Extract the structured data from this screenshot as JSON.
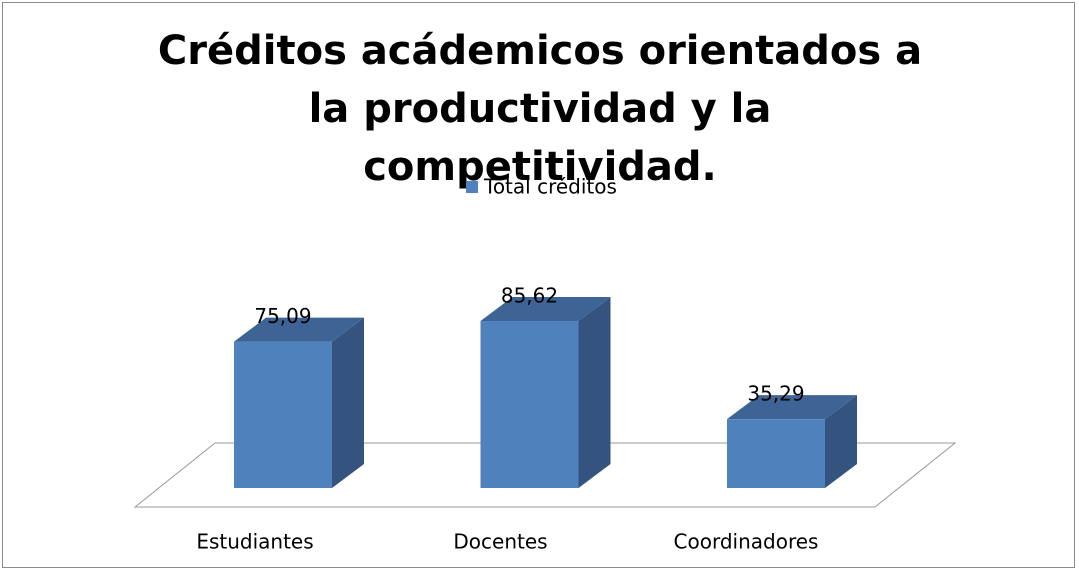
{
  "chart_data": {
    "type": "bar3d",
    "title": "Créditos acádemicos orientados a la productividad y la competitividad.",
    "categories": [
      "Estudiantes",
      "Docentes",
      "Coordinadores"
    ],
    "series": [
      {
        "name": "Total créditos",
        "color": "#4f81bd",
        "values": [
          75.09,
          85.62,
          35.29
        ],
        "value_labels": [
          "75,09",
          "85,62",
          "35,29"
        ]
      }
    ],
    "ylim": [
      0,
      100
    ],
    "legend": "top"
  }
}
